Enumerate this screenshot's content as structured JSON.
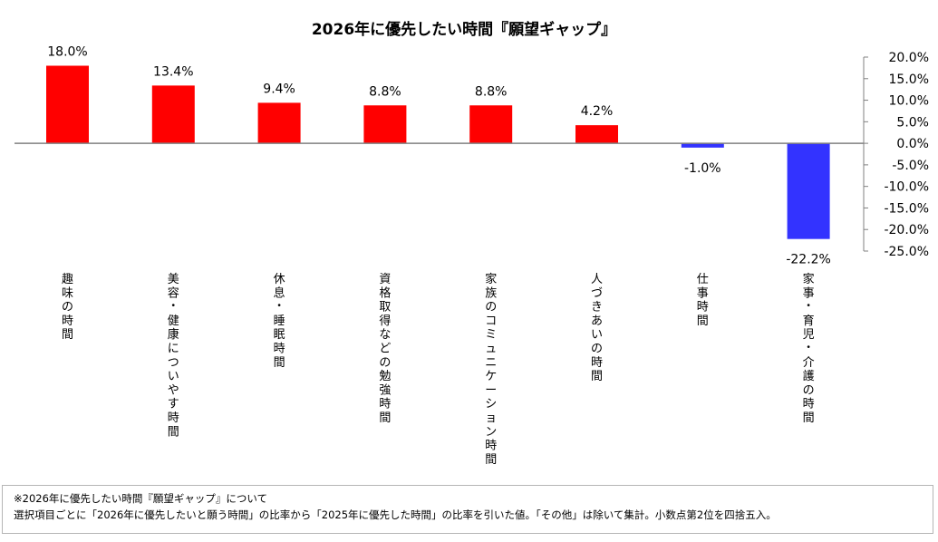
{
  "chart_data": {
    "type": "bar",
    "title": "2026年に優先したい時間『願望ギャップ』",
    "categories": [
      "趣味の時間",
      "美容・健康についやす時間",
      "休息・睡眠時間",
      "資格取得などの勉強時間",
      "家族のコミュニケーション時間",
      "人づきあいの時間",
      "仕事時間",
      "家事・育児・介護の時間"
    ],
    "values": [
      18.0,
      13.4,
      9.4,
      8.8,
      8.8,
      4.2,
      -1.0,
      -22.2
    ],
    "data_labels": [
      "18.0%",
      "13.4%",
      "9.4%",
      "8.8%",
      "8.8%",
      "4.2%",
      "-1.0%",
      "-22.2%"
    ],
    "y_axis": {
      "position": "right",
      "ylim": [
        -25,
        20
      ],
      "ticks": [
        20,
        15,
        10,
        5,
        0,
        -5,
        -10,
        -15,
        -20,
        -25
      ],
      "tick_labels": [
        "20.0%",
        "15.0%",
        "10.0%",
        "5.0%",
        "0.0%",
        "-5.0%",
        "-10.0%",
        "-15.0%",
        "-20.0%",
        "-25.0%"
      ]
    },
    "colors": {
      "positive": "#ff0000",
      "negative": "#3333ff",
      "axis": "#808080"
    },
    "grid": false,
    "legend": "none"
  },
  "note": {
    "line1": "※2026年に優先したい時間『願望ギャップ』について",
    "line2": "選択項目ごとに「2026年に優先したいと願う時間」の比率から「2025年に優先した時間」の比率を引いた値。「その他」は除いて集計。小数点第2位を四捨五入。"
  }
}
